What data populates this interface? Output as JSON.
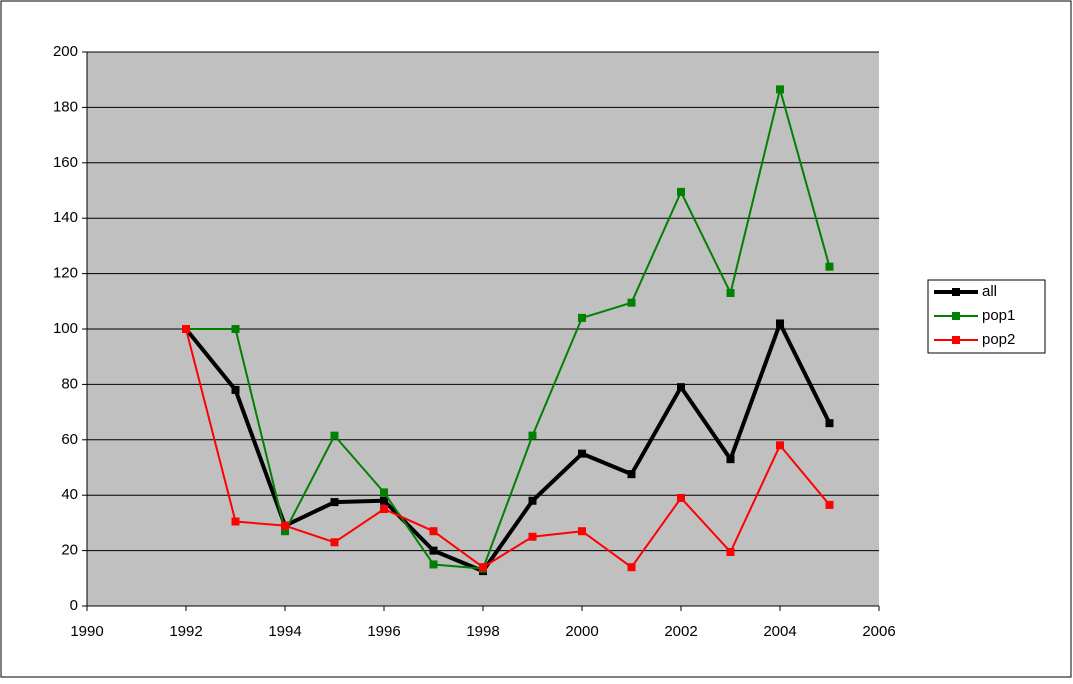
{
  "chart_data": {
    "type": "line",
    "x": [
      1992,
      1993,
      1994,
      1995,
      1996,
      1997,
      1998,
      1999,
      2000,
      2001,
      2002,
      2003,
      2004,
      2005
    ],
    "series": [
      {
        "name": "all",
        "color": "#000000",
        "values": [
          100,
          78,
          29,
          37.5,
          38,
          20,
          12.6,
          38,
          55,
          47.6,
          79,
          53,
          102,
          66
        ]
      },
      {
        "name": "pop1",
        "color": "#008000",
        "values": [
          100,
          100,
          27,
          61.5,
          41,
          15,
          13.5,
          61.5,
          104,
          109.5,
          149.5,
          113,
          186.5,
          122.5
        ]
      },
      {
        "name": "pop2",
        "color": "#ff0000",
        "values": [
          100,
          30.5,
          29,
          23,
          35,
          27,
          14,
          25,
          27,
          14,
          39,
          19.5,
          58,
          36.5
        ]
      }
    ],
    "xlim": [
      1990,
      2006
    ],
    "xticks": [
      1990,
      1992,
      1994,
      1996,
      1998,
      2000,
      2002,
      2004,
      2006
    ],
    "ylim": [
      0,
      200
    ],
    "yticks": [
      0,
      20,
      40,
      60,
      80,
      100,
      120,
      140,
      160,
      180,
      200
    ],
    "grid": true,
    "legend": "right"
  }
}
